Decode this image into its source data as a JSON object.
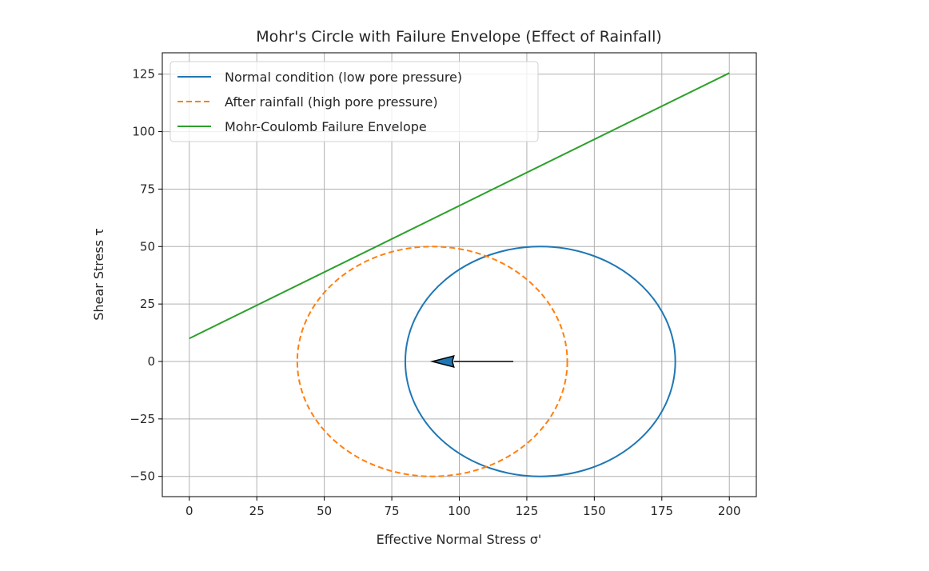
{
  "chart_data": {
    "type": "line",
    "title": "Mohr's Circle with Failure Envelope (Effect of Rainfall)",
    "xlabel": "Effective Normal Stress σ'",
    "ylabel": "Shear Stress τ",
    "xlim": [
      -10,
      210
    ],
    "ylim": [
      -58.8,
      134.3
    ],
    "xticks": [
      0,
      25,
      50,
      75,
      100,
      125,
      150,
      175,
      200
    ],
    "yticks": [
      -50,
      -25,
      0,
      25,
      50,
      75,
      100,
      125
    ],
    "ytick_labels": [
      "−50",
      "−25",
      "0",
      "25",
      "50",
      "75",
      "100",
      "125"
    ],
    "grid": true,
    "legend_position": "top-left",
    "series": [
      {
        "name": "Normal condition (low pore pressure)",
        "kind": "circle",
        "center": [
          130,
          0
        ],
        "radius": 50,
        "color": "#1f77b4",
        "style": "solid"
      },
      {
        "name": "After rainfall (high pore pressure)",
        "kind": "circle",
        "center": [
          90,
          0
        ],
        "radius": 50,
        "color": "#ff7f0e",
        "style": "dashed"
      },
      {
        "name": "Mohr-Coulomb Failure Envelope",
        "kind": "line",
        "x": [
          0,
          200
        ],
        "y": [
          10,
          125.5
        ],
        "color": "#2ca02c",
        "style": "solid"
      }
    ],
    "annotations": [
      {
        "kind": "arrow",
        "from": [
          120,
          0
        ],
        "to": [
          90,
          0
        ],
        "fill": "#1f77b4",
        "edge": "#000000"
      }
    ]
  }
}
